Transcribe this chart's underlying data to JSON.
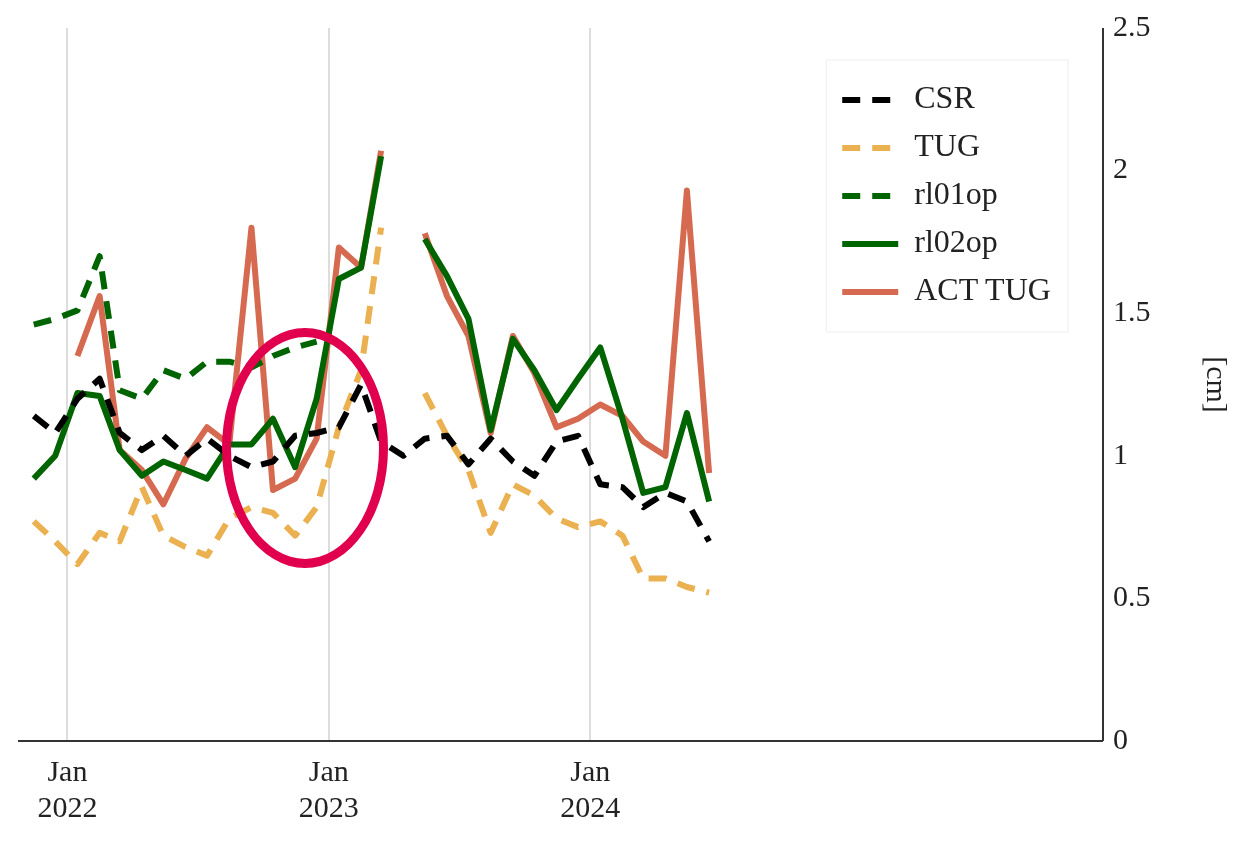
{
  "chart_data": {
    "type": "line",
    "ylabel": "[cm]",
    "x": [
      "2021-11-15",
      "2021-12-15",
      "2022-01-15",
      "2022-02-15",
      "2022-03-15",
      "2022-04-15",
      "2022-05-15",
      "2022-06-15",
      "2022-07-15",
      "2022-08-15",
      "2022-09-15",
      "2022-10-15",
      "2022-11-15",
      "2022-12-15",
      "2023-01-15",
      "2023-02-15",
      "2023-03-15",
      "2023-04-15",
      "2023-05-15",
      "2023-06-15",
      "2023-07-15",
      "2023-08-15",
      "2023-09-15",
      "2023-10-15",
      "2023-11-15",
      "2023-12-15",
      "2024-01-15",
      "2024-02-15",
      "2024-03-15",
      "2024-04-15",
      "2024-05-15",
      "2024-06-15"
    ],
    "series": [
      {
        "name": "CSR",
        "color": "#000000",
        "line_style": "dashed",
        "values": [
          1.14,
          1.08,
          1.2,
          1.27,
          1.08,
          1.02,
          1.07,
          1.0,
          1.06,
          1.0,
          0.96,
          0.98,
          1.07,
          1.08,
          1.1,
          1.25,
          1.05,
          1.0,
          1.06,
          1.07,
          0.97,
          1.06,
          0.98,
          0.93,
          1.05,
          1.07,
          0.9,
          0.89,
          0.82,
          0.87,
          0.84,
          0.7
        ]
      },
      {
        "name": "TUG",
        "color": "#ebb050",
        "line_style": "dashed",
        "values": [
          0.77,
          0.7,
          0.62,
          0.73,
          0.7,
          0.89,
          0.72,
          0.68,
          0.65,
          0.78,
          0.82,
          0.8,
          0.72,
          0.82,
          1.1,
          1.3,
          1.8,
          null,
          1.22,
          1.07,
          0.95,
          0.73,
          0.9,
          0.86,
          0.78,
          0.75,
          0.77,
          0.72,
          0.57,
          0.57,
          0.54,
          0.52
        ]
      },
      {
        "name": "rl01op",
        "color": "#006400",
        "line_style": "dashed",
        "values": [
          1.46,
          1.48,
          1.51,
          1.7,
          1.23,
          1.2,
          1.3,
          1.27,
          1.33,
          1.33,
          1.31,
          1.35,
          1.38,
          1.4,
          null,
          null,
          null,
          null,
          null,
          null,
          null,
          null,
          null,
          null,
          null,
          null,
          null,
          null,
          null,
          null,
          null,
          null
        ]
      },
      {
        "name": "rl02op",
        "color": "#006400",
        "line_style": "solid",
        "values": [
          0.92,
          1.0,
          1.22,
          1.21,
          1.02,
          0.93,
          0.98,
          0.95,
          0.92,
          1.04,
          1.04,
          1.13,
          0.96,
          1.2,
          1.62,
          1.66,
          2.05,
          null,
          1.76,
          1.63,
          1.48,
          1.09,
          1.41,
          1.3,
          1.16,
          1.27,
          1.38,
          1.13,
          0.87,
          0.89,
          1.15,
          0.84
        ]
      },
      {
        "name": "ACT TUG",
        "color": "#d66a50",
        "line_style": "solid",
        "values": [
          null,
          null,
          1.35,
          1.56,
          1.02,
          0.95,
          0.83,
          0.99,
          1.1,
          1.04,
          1.8,
          0.88,
          0.92,
          1.06,
          1.73,
          1.66,
          2.07,
          null,
          1.78,
          1.56,
          1.42,
          1.08,
          1.42,
          1.29,
          1.1,
          1.13,
          1.18,
          1.14,
          1.05,
          1.0,
          1.93,
          0.94
        ]
      }
    ],
    "xlim": [
      "2021-10-24",
      "2025-12-17"
    ],
    "xticks": [
      {
        "value": "2022-01-01",
        "label": "Jan 2022"
      },
      {
        "value": "2023-01-01",
        "label": "Jan 2023"
      },
      {
        "value": "2024-01-01",
        "label": "Jan 2024"
      }
    ],
    "ylim": [
      0,
      2.5
    ],
    "yticks": [
      0,
      0.5,
      1,
      1.5,
      2,
      2.5
    ],
    "grid": "x",
    "legend": "top right",
    "marker": "none"
  }
}
